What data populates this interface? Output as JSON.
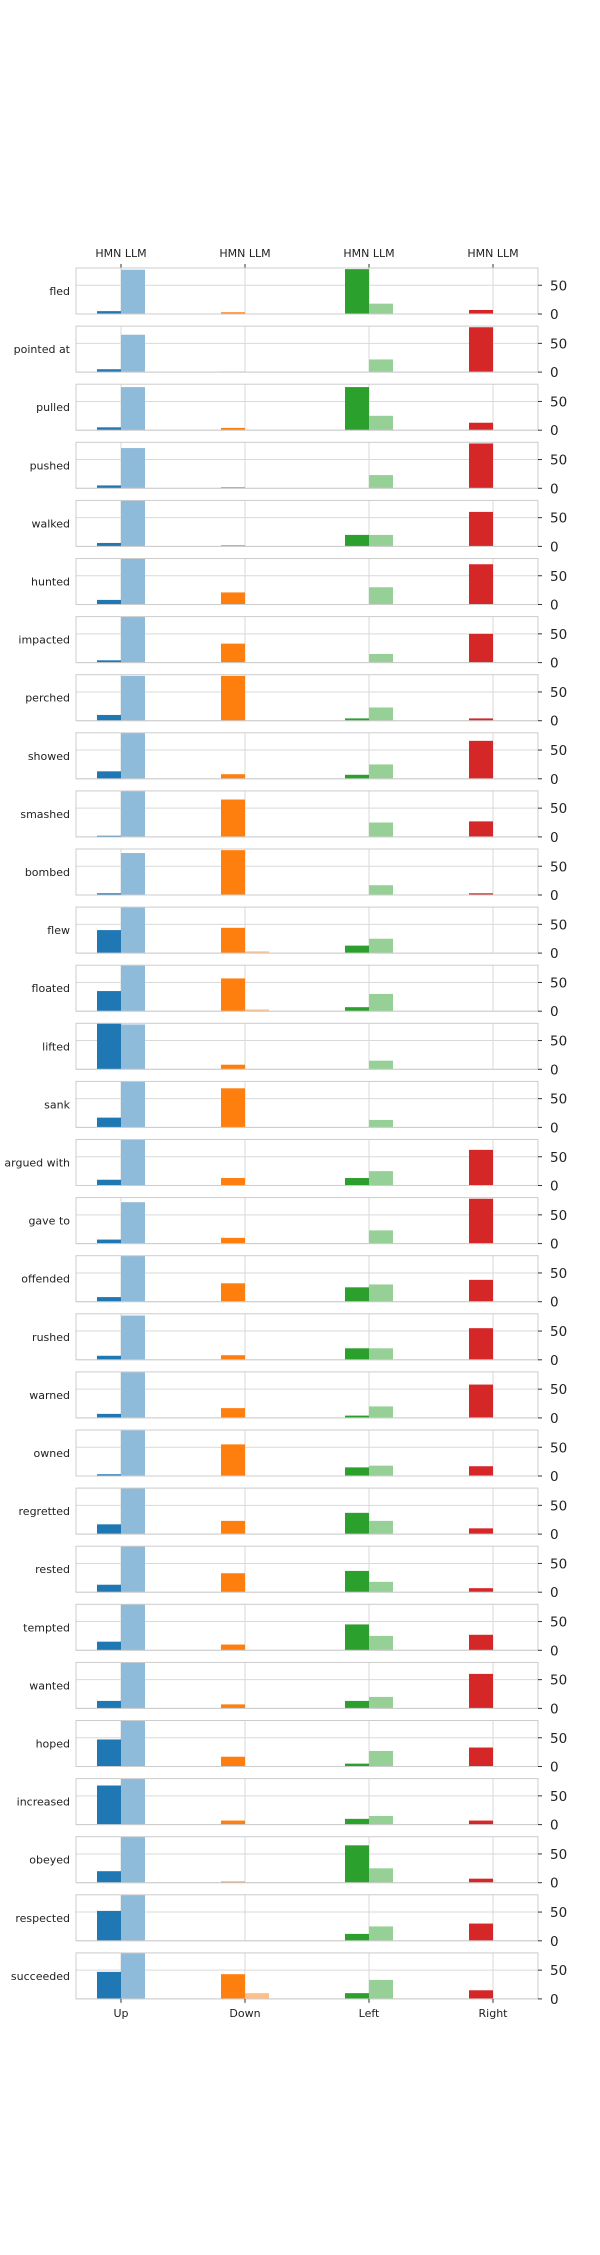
{
  "chart_data": {
    "type": "bar",
    "top_tick_labels": [
      "HMN LLM",
      "HMN LLM",
      "HMN LLM",
      "HMN LLM"
    ],
    "directions": [
      "Up",
      "Down",
      "Left",
      "Right"
    ],
    "sources": [
      "HMN",
      "LLM"
    ],
    "ylim": [
      0,
      80
    ],
    "yticks": [
      "0",
      "50"
    ],
    "grid": true,
    "colors": {
      "Up": {
        "HMN": "#1f77b4",
        "LLM": "#8fbbdb"
      },
      "Down": {
        "HMN": "#ff7f0e",
        "LLM": "#ffbf87"
      },
      "Left": {
        "HMN": "#2ca02c",
        "LLM": "#96d096"
      },
      "Right": {
        "HMN": "#d62728",
        "LLM": "#eb9394"
      }
    },
    "rows": [
      {
        "verb": "fled",
        "HMN": [
          5,
          3,
          78,
          7
        ],
        "LLM": [
          77,
          0,
          18,
          0
        ]
      },
      {
        "verb": "pointed at",
        "HMN": [
          5,
          1,
          0,
          78
        ],
        "LLM": [
          65,
          0,
          22,
          0
        ]
      },
      {
        "verb": "pulled",
        "HMN": [
          5,
          4,
          75,
          13
        ],
        "LLM": [
          75,
          0,
          25,
          0
        ]
      },
      {
        "verb": "pushed",
        "HMN": [
          5,
          2,
          0,
          78
        ],
        "LLM": [
          70,
          0,
          23,
          0
        ]
      },
      {
        "verb": "walked",
        "HMN": [
          6,
          2,
          20,
          60
        ],
        "LLM": [
          80,
          0,
          20,
          0
        ]
      },
      {
        "verb": "hunted",
        "HMN": [
          8,
          21,
          0,
          70
        ],
        "LLM": [
          80,
          0,
          30,
          0
        ]
      },
      {
        "verb": "impacted",
        "HMN": [
          4,
          33,
          0,
          50
        ],
        "LLM": [
          80,
          0,
          15,
          0
        ]
      },
      {
        "verb": "perched",
        "HMN": [
          10,
          78,
          4,
          4
        ],
        "LLM": [
          78,
          0,
          23,
          0
        ]
      },
      {
        "verb": "showed",
        "HMN": [
          13,
          8,
          7,
          66
        ],
        "LLM": [
          80,
          0,
          25,
          0
        ]
      },
      {
        "verb": "smashed",
        "HMN": [
          2,
          65,
          0,
          27
        ],
        "LLM": [
          80,
          0,
          25,
          0
        ]
      },
      {
        "verb": "bombed",
        "HMN": [
          3,
          78,
          0,
          3
        ],
        "LLM": [
          73,
          0,
          17,
          0
        ]
      },
      {
        "verb": "flew",
        "HMN": [
          40,
          44,
          13,
          0
        ],
        "LLM": [
          80,
          3,
          25,
          0
        ]
      },
      {
        "verb": "floated",
        "HMN": [
          35,
          57,
          7,
          0
        ],
        "LLM": [
          80,
          3,
          30,
          0
        ]
      },
      {
        "verb": "lifted",
        "HMN": [
          80,
          8,
          0,
          0
        ],
        "LLM": [
          78,
          0,
          15,
          0
        ]
      },
      {
        "verb": "sank",
        "HMN": [
          17,
          68,
          0,
          0
        ],
        "LLM": [
          80,
          0,
          13,
          0
        ]
      },
      {
        "verb": "argued with",
        "HMN": [
          10,
          13,
          13,
          62
        ],
        "LLM": [
          80,
          0,
          25,
          0
        ]
      },
      {
        "verb": "gave to",
        "HMN": [
          7,
          10,
          0,
          78
        ],
        "LLM": [
          72,
          0,
          23,
          0
        ]
      },
      {
        "verb": "offended",
        "HMN": [
          8,
          32,
          25,
          38
        ],
        "LLM": [
          80,
          0,
          30,
          0
        ]
      },
      {
        "verb": "rushed",
        "HMN": [
          7,
          8,
          20,
          55
        ],
        "LLM": [
          77,
          0,
          20,
          0
        ]
      },
      {
        "verb": "warned",
        "HMN": [
          7,
          17,
          4,
          58
        ],
        "LLM": [
          80,
          0,
          20,
          0
        ]
      },
      {
        "verb": "owned",
        "HMN": [
          3,
          55,
          15,
          17
        ],
        "LLM": [
          80,
          0,
          18,
          0
        ]
      },
      {
        "verb": "regretted",
        "HMN": [
          17,
          23,
          37,
          10
        ],
        "LLM": [
          80,
          0,
          23,
          0
        ]
      },
      {
        "verb": "rested",
        "HMN": [
          13,
          33,
          37,
          7
        ],
        "LLM": [
          80,
          0,
          18,
          0
        ]
      },
      {
        "verb": "tempted",
        "HMN": [
          15,
          10,
          45,
          27
        ],
        "LLM": [
          80,
          0,
          25,
          0
        ]
      },
      {
        "verb": "wanted",
        "HMN": [
          13,
          7,
          13,
          60
        ],
        "LLM": [
          80,
          0,
          20,
          0
        ]
      },
      {
        "verb": "hoped",
        "HMN": [
          47,
          17,
          5,
          33
        ],
        "LLM": [
          80,
          0,
          27,
          0
        ]
      },
      {
        "verb": "increased",
        "HMN": [
          68,
          7,
          10,
          7
        ],
        "LLM": [
          80,
          0,
          15,
          0
        ]
      },
      {
        "verb": "obeyed",
        "HMN": [
          20,
          2,
          65,
          7
        ],
        "LLM": [
          80,
          0,
          25,
          0
        ]
      },
      {
        "verb": "respected",
        "HMN": [
          52,
          0,
          12,
          30
        ],
        "LLM": [
          80,
          0,
          25,
          0
        ]
      },
      {
        "verb": "succeeded",
        "HMN": [
          47,
          43,
          10,
          15
        ],
        "LLM": [
          80,
          10,
          33,
          0
        ]
      }
    ]
  }
}
